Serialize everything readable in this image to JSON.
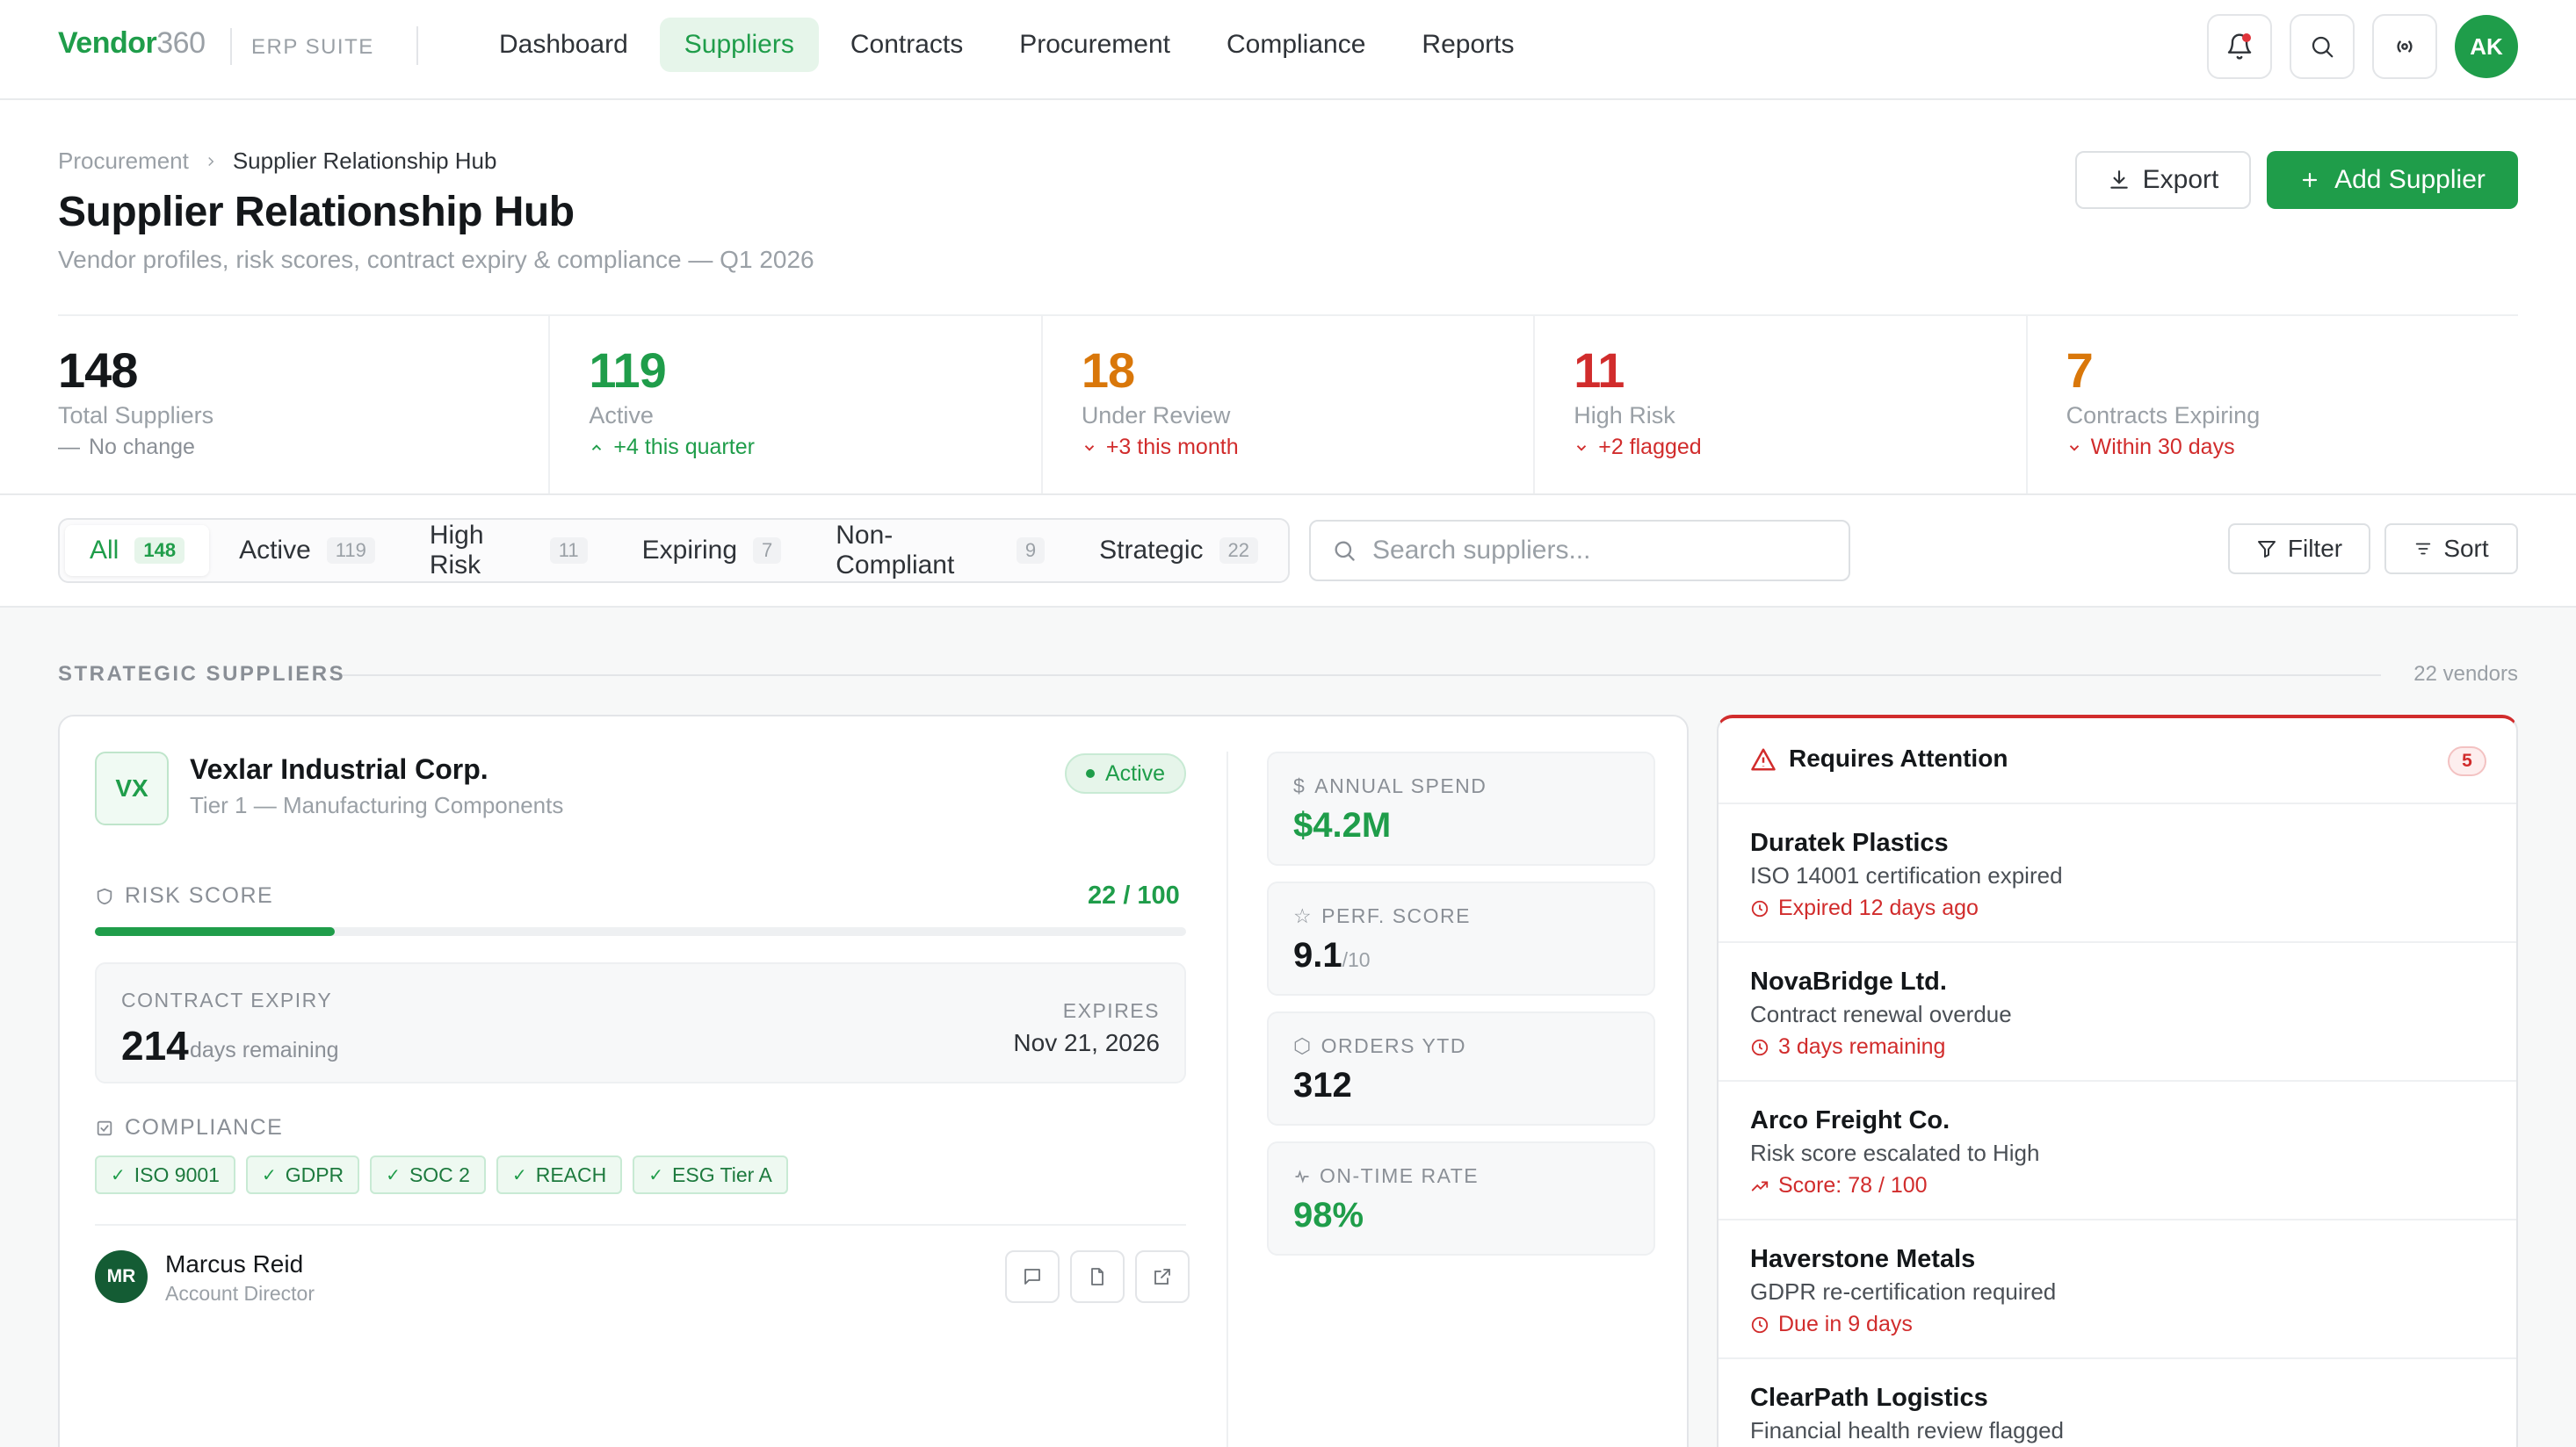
{
  "brand": {
    "name": "Vendor",
    "suffix": "360",
    "suite": "ERP SUITE"
  },
  "nav": {
    "items": [
      {
        "label": "Dashboard"
      },
      {
        "label": "Suppliers"
      },
      {
        "label": "Contracts"
      },
      {
        "label": "Procurement"
      },
      {
        "label": "Compliance"
      },
      {
        "label": "Reports"
      }
    ],
    "active": "Suppliers"
  },
  "user": {
    "initials": "AK"
  },
  "breadcrumb": {
    "parent": "Procurement",
    "current": "Supplier Relationship Hub"
  },
  "page": {
    "title": "Supplier Relationship Hub",
    "subtitle": "Vendor profiles, risk scores, contract expiry & compliance — Q1 2026"
  },
  "actions": {
    "export": "Export",
    "add": "Add Supplier"
  },
  "stats": [
    {
      "value": "148",
      "label": "Total Suppliers",
      "delta": "No change",
      "color": "#14171a",
      "trend": "flat"
    },
    {
      "value": "119",
      "label": "Active",
      "delta": "+4 this quarter",
      "color": "#1f9d4a",
      "trend": "up"
    },
    {
      "value": "18",
      "label": "Under Review",
      "delta": "+3 this month",
      "color": "#d9770a",
      "trend": "down"
    },
    {
      "value": "11",
      "label": "High Risk",
      "delta": "+2 flagged",
      "color": "#d12c2c",
      "trend": "down"
    },
    {
      "value": "7",
      "label": "Contracts Expiring",
      "delta": "Within 30 days",
      "color": "#d9770a",
      "trend": "down"
    }
  ],
  "tabs": [
    {
      "label": "All",
      "count": "148"
    },
    {
      "label": "Active",
      "count": "119"
    },
    {
      "label": "High Risk",
      "count": "11"
    },
    {
      "label": "Expiring",
      "count": "7"
    },
    {
      "label": "Non-Compliant",
      "count": "9"
    },
    {
      "label": "Strategic",
      "count": "22"
    }
  ],
  "search": {
    "placeholder": "Search suppliers..."
  },
  "toolbar": {
    "filter": "Filter",
    "sort": "Sort"
  },
  "section": {
    "title": "STRATEGIC SUPPLIERS",
    "count": "22 vendors"
  },
  "supplier": {
    "logo": "VX",
    "name": "Vexlar Industrial Corp.",
    "tier": "Tier 1 — Manufacturing Components",
    "status": "Active",
    "risk": {
      "label": "RISK SCORE",
      "value": "22 / 100",
      "fraction": 0.22
    },
    "contract": {
      "label": "CONTRACT EXPIRY",
      "days": "214",
      "days_text": "days remaining",
      "expires_label": "EXPIRES",
      "expires_date": "Nov 21, 2026"
    },
    "compliance": {
      "label": "COMPLIANCE",
      "chips": [
        "ISO 9001",
        "GDPR",
        "SOC 2",
        "REACH",
        "ESG Tier A"
      ]
    },
    "contact": {
      "initials": "MR",
      "name": "Marcus Reid",
      "role": "Account Director"
    },
    "metrics": [
      {
        "label": "ANNUAL SPEND",
        "value": "$4.2M",
        "icon": "dollar-icon",
        "sub": ""
      },
      {
        "label": "PERF. SCORE",
        "value": "9.1",
        "icon": "star-icon",
        "sub": "/10"
      },
      {
        "label": "ORDERS YTD",
        "value": "312",
        "icon": "box-icon",
        "sub": ""
      },
      {
        "label": "ON-TIME RATE",
        "value": "98%",
        "icon": "pulse-icon",
        "sub": ""
      }
    ]
  },
  "attention": {
    "title": "Requires Attention",
    "count": "5",
    "items": [
      {
        "name": "Duratek Plastics",
        "desc": "ISO 14001 certification expired",
        "status": "Expired 12 days ago",
        "icon": "clock-icon"
      },
      {
        "name": "NovaBridge Ltd.",
        "desc": "Contract renewal overdue",
        "status": "3 days remaining",
        "icon": "clock-icon"
      },
      {
        "name": "Arco Freight Co.",
        "desc": "Risk score escalated to High",
        "status": "Score: 78 / 100",
        "icon": "trend-up-icon"
      },
      {
        "name": "Haverstone Metals",
        "desc": "GDPR re-certification required",
        "status": "Due in 9 days",
        "icon": "clock-icon"
      },
      {
        "name": "ClearPath Logistics",
        "desc": "Financial health review flagged",
        "status": "",
        "icon": "clock-icon"
      }
    ]
  }
}
